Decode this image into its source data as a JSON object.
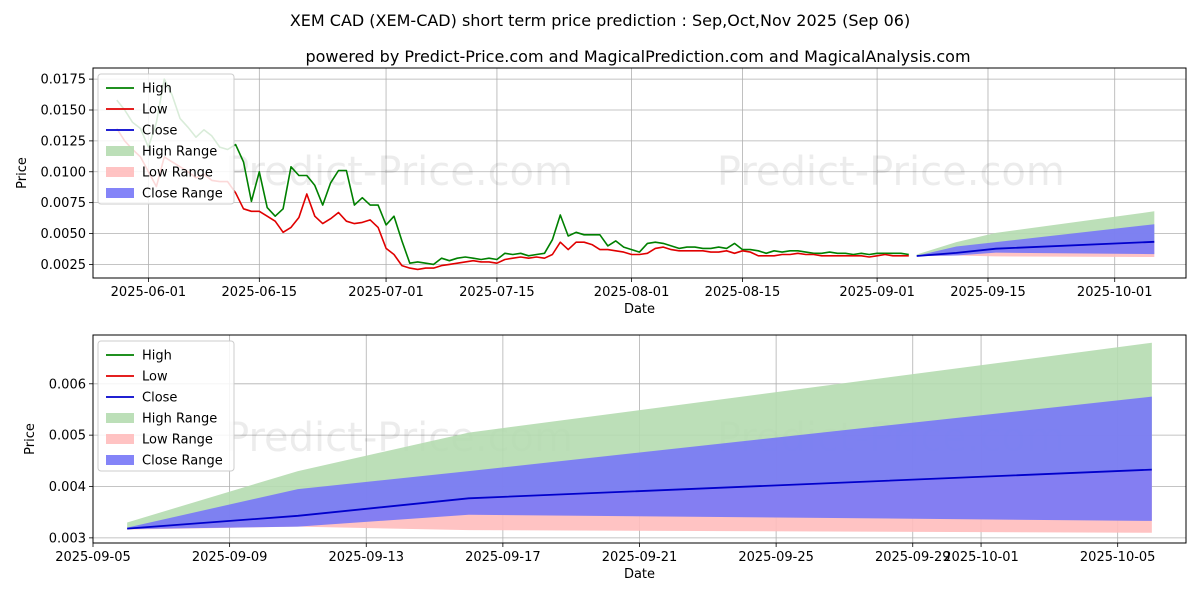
{
  "title": "XEM CAD (XEM-CAD) short term price prediction : Sep,Oct,Nov 2025 (Sep 06)",
  "subtitle": "powered by Predict-Price.com and MagicalPrediction.com and MagicalAnalysis.com",
  "watermark": "Predict-Price.com",
  "colors": {
    "high": "#008000",
    "low": "#e00000",
    "close": "#0000cc",
    "high_range": "#b5dcb0",
    "low_range": "#ffbdbd",
    "close_range": "#7777f7",
    "grid": "#b0b0b0"
  },
  "chart_data": [
    {
      "type": "line",
      "panel": "history",
      "xlabel": "Date",
      "ylabel": "Price",
      "x_ticks": [
        "2025-06-01",
        "2025-06-15",
        "2025-07-01",
        "2025-07-15",
        "2025-08-01",
        "2025-08-15",
        "2025-09-01",
        "2025-09-15",
        "2025-10-01"
      ],
      "y_ticks": [
        "0.0025",
        "0.0050",
        "0.0075",
        "0.0100",
        "0.0125",
        "0.0150",
        "0.0175"
      ],
      "xlim": [
        "2025-05-25",
        "2025-10-10"
      ],
      "ylim": [
        0.0014,
        0.0184
      ],
      "legend": [
        "High",
        "Low",
        "Close",
        "High Range",
        "Low Range",
        "Close Range"
      ],
      "legend_position": "top-left",
      "series": [
        {
          "name": "High",
          "start_date": "2025-05-28",
          "step_days": 1,
          "values": [
            0.0158,
            0.015,
            0.014,
            0.0135,
            0.012,
            0.014,
            0.0175,
            0.0162,
            0.0143,
            0.0136,
            0.0128,
            0.0134,
            0.0129,
            0.012,
            0.0118,
            0.0122,
            0.0108,
            0.0076,
            0.01,
            0.0071,
            0.0064,
            0.007,
            0.0104,
            0.0097,
            0.0097,
            0.0089,
            0.0073,
            0.0091,
            0.0101,
            0.0101,
            0.0073,
            0.0079,
            0.0073,
            0.0073,
            0.0057,
            0.0064,
            0.0044,
            0.0026,
            0.0027,
            0.0026,
            0.0025,
            0.003,
            0.0028,
            0.003,
            0.0031,
            0.003,
            0.0029,
            0.003,
            0.0029,
            0.0034,
            0.0033,
            0.0034,
            0.0032,
            0.0033,
            0.0034,
            0.0045,
            0.0065,
            0.0048,
            0.0051,
            0.0049,
            0.0049,
            0.0049,
            0.004,
            0.0044,
            0.0039,
            0.0037,
            0.0035,
            0.0042,
            0.0043,
            0.0042,
            0.004,
            0.0038,
            0.0039,
            0.0039,
            0.0038,
            0.0038,
            0.0039,
            0.0038,
            0.0042,
            0.0037,
            0.0037,
            0.0036,
            0.0034,
            0.0036,
            0.0035,
            0.0036,
            0.0036,
            0.0035,
            0.0034,
            0.0034,
            0.0035,
            0.0034,
            0.0034,
            0.0033,
            0.0034,
            0.0033,
            0.0034,
            0.0034,
            0.0034,
            0.0034,
            0.0033
          ]
        },
        {
          "name": "Low",
          "start_date": "2025-05-28",
          "step_days": 1,
          "values": [
            0.0135,
            0.0125,
            0.0118,
            0.0112,
            0.01,
            0.0088,
            0.0112,
            0.0108,
            0.0104,
            0.01,
            0.0095,
            0.0098,
            0.0093,
            0.0092,
            0.0092,
            0.0083,
            0.007,
            0.0068,
            0.0068,
            0.0064,
            0.006,
            0.0051,
            0.0055,
            0.0063,
            0.0082,
            0.0064,
            0.0058,
            0.0062,
            0.0067,
            0.006,
            0.0058,
            0.0059,
            0.0061,
            0.0055,
            0.0038,
            0.0033,
            0.0024,
            0.0022,
            0.0021,
            0.0022,
            0.0022,
            0.0024,
            0.0025,
            0.0026,
            0.0027,
            0.0028,
            0.0027,
            0.0027,
            0.0026,
            0.0029,
            0.003,
            0.0031,
            0.003,
            0.0031,
            0.003,
            0.0033,
            0.0043,
            0.0037,
            0.0043,
            0.0043,
            0.0041,
            0.0037,
            0.0037,
            0.0036,
            0.0035,
            0.0033,
            0.0033,
            0.0034,
            0.0038,
            0.0039,
            0.0037,
            0.0036,
            0.0036,
            0.0036,
            0.0036,
            0.0035,
            0.0035,
            0.0036,
            0.0034,
            0.0036,
            0.0035,
            0.0032,
            0.0032,
            0.0032,
            0.0033,
            0.0033,
            0.0034,
            0.0033,
            0.0033,
            0.0032,
            0.0032,
            0.0032,
            0.0032,
            0.0032,
            0.0032,
            0.0031,
            0.0032,
            0.0033,
            0.0032,
            0.0032,
            0.0032
          ]
        }
      ],
      "forecast": [
        {
          "date": "2025-09-06",
          "high_range_top": 0.0033,
          "close_range_top": 0.0032,
          "close": 0.00318,
          "close_range_bottom": 0.00317,
          "low_range_bottom": 0.00316
        },
        {
          "date": "2025-09-11",
          "high_range_top": 0.0043,
          "close_range_top": 0.00395,
          "close": 0.00343,
          "close_range_bottom": 0.00322,
          "low_range_bottom": 0.00322
        },
        {
          "date": "2025-09-16",
          "high_range_top": 0.00505,
          "close_range_top": 0.0043,
          "close": 0.00377,
          "close_range_bottom": 0.00345,
          "low_range_bottom": 0.00315
        },
        {
          "date": "2025-10-06",
          "high_range_top": 0.0068,
          "close_range_top": 0.00575,
          "close": 0.00433,
          "close_range_bottom": 0.00333,
          "low_range_bottom": 0.0031
        }
      ]
    },
    {
      "type": "area",
      "panel": "forecast",
      "xlabel": "Date",
      "ylabel": "Price",
      "x_ticks": [
        "2025-09-05",
        "2025-09-09",
        "2025-09-13",
        "2025-09-17",
        "2025-09-21",
        "2025-09-25",
        "2025-09-29",
        "2025-10-01",
        "2025-10-05"
      ],
      "y_ticks": [
        "0.003",
        "0.004",
        "0.005",
        "0.006"
      ],
      "xlim": [
        "2025-09-05",
        "2025-10-07"
      ],
      "ylim": [
        0.0029,
        0.00695
      ],
      "legend": [
        "High",
        "Low",
        "Close",
        "High Range",
        "Low Range",
        "Close Range"
      ],
      "legend_position": "top-left",
      "forecast": [
        {
          "date": "2025-09-06",
          "high_range_top": 0.0033,
          "close_range_top": 0.0032,
          "close": 0.00318,
          "close_range_bottom": 0.00317,
          "low_range_bottom": 0.00316
        },
        {
          "date": "2025-09-11",
          "high_range_top": 0.0043,
          "close_range_top": 0.00395,
          "close": 0.00343,
          "close_range_bottom": 0.00322,
          "low_range_bottom": 0.00322
        },
        {
          "date": "2025-09-16",
          "high_range_top": 0.00505,
          "close_range_top": 0.0043,
          "close": 0.00377,
          "close_range_bottom": 0.00345,
          "low_range_bottom": 0.00315
        },
        {
          "date": "2025-10-06",
          "high_range_top": 0.0068,
          "close_range_top": 0.00575,
          "close": 0.00433,
          "close_range_bottom": 0.00333,
          "low_range_bottom": 0.0031
        }
      ]
    }
  ]
}
